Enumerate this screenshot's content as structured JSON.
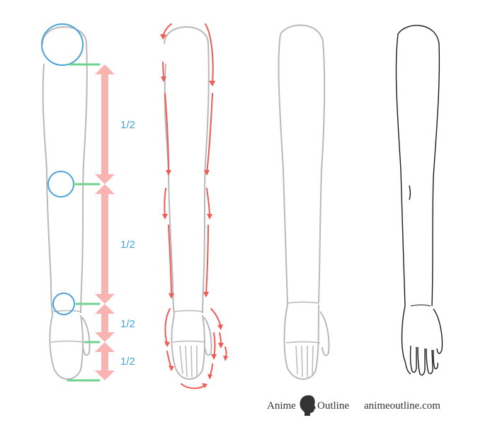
{
  "colors": {
    "sketch": "#b9b9b9",
    "lineart": "#1a1a1a",
    "joint": "#4aa3d8",
    "ratio_label": "#4aa3d8",
    "measure_arrow": "#f9b3b0",
    "measure_tick": "#6fd38f",
    "flow_arrow": "#ef5b55",
    "brand_text": "#333333"
  },
  "ratios": {
    "upper_arm": "1/2",
    "forearm": "1/2",
    "palm": "1/2",
    "fingers": "1/2"
  },
  "brand": {
    "name_left": "Anime",
    "name_right": "Outline",
    "url": "animeoutline.com",
    "logo_icon": "head-silhouette-icon"
  }
}
